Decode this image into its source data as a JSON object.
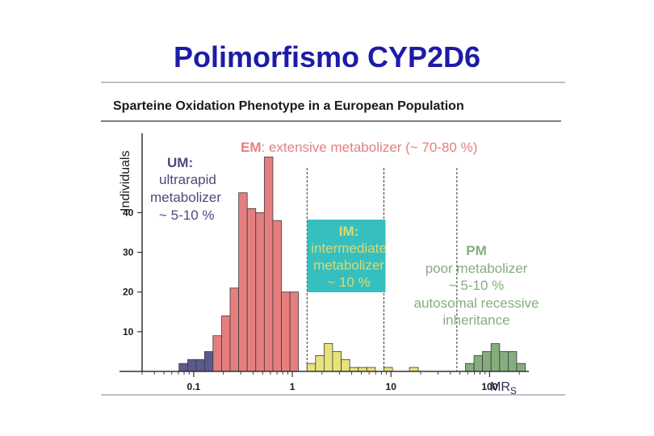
{
  "title": "Polimorfismo CYP2D6",
  "chart_data": {
    "type": "bar",
    "title": "Sparteine Oxidation Phenotype in a European Population",
    "ylabel": "Individuals",
    "xlabel": "MR",
    "xlabel_sub": "S",
    "x_scale": "log",
    "xlim": [
      0.03,
      250
    ],
    "ylim": [
      0,
      60
    ],
    "yticks": [
      {
        "value": 10,
        "label": "10"
      },
      {
        "value": 20,
        "label": "20"
      },
      {
        "value": 30,
        "label": "30"
      },
      {
        "value": 40,
        "label": "40"
      }
    ],
    "xticks": [
      {
        "value": 0.1,
        "label": "0.1"
      },
      {
        "value": 1,
        "label": "1"
      },
      {
        "value": 10,
        "label": "10"
      },
      {
        "value": 100,
        "label": "100"
      }
    ],
    "colors": {
      "UM": "#5a5a8c",
      "EM": "#e57f7f",
      "IM": "#e8e27a",
      "PM": "#86ad7e",
      "IM_box": "#35bfbf"
    },
    "series": [
      {
        "group": "UM",
        "bins": [
          {
            "x0": 0.071,
            "x1": 0.087,
            "value": 2
          },
          {
            "x0": 0.087,
            "x1": 0.106,
            "value": 3
          },
          {
            "x0": 0.106,
            "x1": 0.129,
            "value": 3
          },
          {
            "x0": 0.129,
            "x1": 0.157,
            "value": 5
          }
        ]
      },
      {
        "group": "EM",
        "bins": [
          {
            "x0": 0.157,
            "x1": 0.192,
            "value": 9
          },
          {
            "x0": 0.192,
            "x1": 0.234,
            "value": 14
          },
          {
            "x0": 0.234,
            "x1": 0.286,
            "value": 21
          },
          {
            "x0": 0.286,
            "x1": 0.349,
            "value": 45
          },
          {
            "x0": 0.349,
            "x1": 0.426,
            "value": 41
          },
          {
            "x0": 0.426,
            "x1": 0.52,
            "value": 40
          },
          {
            "x0": 0.52,
            "x1": 0.635,
            "value": 54
          },
          {
            "x0": 0.635,
            "x1": 0.775,
            "value": 38
          },
          {
            "x0": 0.775,
            "x1": 0.946,
            "value": 20
          },
          {
            "x0": 0.946,
            "x1": 1.155,
            "value": 20
          }
        ]
      },
      {
        "group": "IM",
        "bins": [
          {
            "x0": 1.41,
            "x1": 1.72,
            "value": 2
          },
          {
            "x0": 1.72,
            "x1": 2.1,
            "value": 4
          },
          {
            "x0": 2.1,
            "x1": 2.56,
            "value": 7
          },
          {
            "x0": 2.56,
            "x1": 3.13,
            "value": 5
          },
          {
            "x0": 3.13,
            "x1": 3.82,
            "value": 3
          },
          {
            "x0": 3.82,
            "x1": 4.66,
            "value": 1
          },
          {
            "x0": 4.66,
            "x1": 5.69,
            "value": 1
          },
          {
            "x0": 5.69,
            "x1": 6.95,
            "value": 1
          },
          {
            "x0": 8.48,
            "x1": 10.35,
            "value": 1
          },
          {
            "x0": 15.4,
            "x1": 18.9,
            "value": 1
          }
        ]
      },
      {
        "group": "PM",
        "bins": [
          {
            "x0": 56.9,
            "x1": 69.5,
            "value": 2
          },
          {
            "x0": 69.5,
            "x1": 84.8,
            "value": 4
          },
          {
            "x0": 84.8,
            "x1": 103.5,
            "value": 5
          },
          {
            "x0": 103.5,
            "x1": 126.4,
            "value": 7
          },
          {
            "x0": 126.4,
            "x1": 154.3,
            "value": 5
          },
          {
            "x0": 154.3,
            "x1": 188.3,
            "value": 5
          },
          {
            "x0": 188.3,
            "x1": 229.9,
            "value": 2
          }
        ]
      }
    ],
    "dividers": [
      1.41,
      8.48,
      46.6
    ],
    "annotations": {
      "em": {
        "abbr": "EM",
        "text": ": extensive metabolizer (~ 70-80 %)"
      },
      "um": [
        "UM:",
        "ultrarapid",
        "metabolizer",
        "~ 5-10 %"
      ],
      "im": [
        "IM:",
        "intermediate",
        "metabolizer",
        "~ 10 %"
      ],
      "pm": [
        "PM",
        "poor metabolizer",
        "~ 5-10 %",
        "autosomal recessive",
        "inheritance"
      ]
    }
  }
}
